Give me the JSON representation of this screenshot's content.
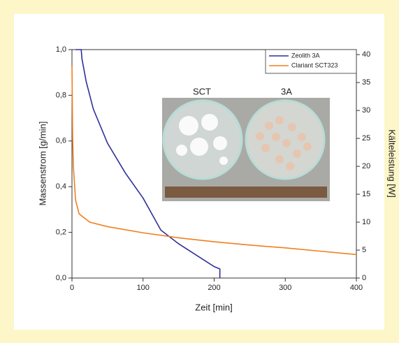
{
  "chart_data": {
    "type": "line",
    "xlabel": "Zeit [min]",
    "ylabel": "Massenstrom [g/min]",
    "y2label": "Kälteleistung [W]",
    "xlim": [
      0,
      400
    ],
    "xticks": [
      0,
      100,
      200,
      300,
      400
    ],
    "ylim": [
      0,
      1.0
    ],
    "yticks": [
      {
        "value": 0,
        "label": "0,0"
      },
      {
        "value": 0.2,
        "label": "0,2"
      },
      {
        "value": 0.4,
        "label": "0,4"
      },
      {
        "value": 0.6,
        "label": "0,6"
      },
      {
        "value": 0.8,
        "label": "0,8"
      },
      {
        "value": 1.0,
        "label": "1,0"
      }
    ],
    "y2lim": [
      0,
      40.9
    ],
    "y2ticks": [
      0,
      5,
      10,
      15,
      20,
      25,
      30,
      35,
      40
    ],
    "legend": "top-right",
    "series": [
      {
        "name": "Zeolith 3A",
        "color": "#2f2f9a",
        "axis": "y",
        "x": [
          5,
          13,
          14,
          20,
          30,
          50,
          75,
          100,
          125,
          150,
          175,
          200,
          208,
          208
        ],
        "values": [
          1.0,
          1.0,
          0.96,
          0.86,
          0.74,
          0.59,
          0.46,
          0.35,
          0.21,
          0.15,
          0.1,
          0.05,
          0.04,
          0
        ]
      },
      {
        "name": "Clariant SCT323",
        "color": "#f07f1e",
        "axis": "y2",
        "x": [
          0,
          1,
          2,
          5,
          10,
          25,
          50,
          100,
          150,
          200,
          250,
          300,
          350,
          400
        ],
        "values": [
          38,
          25,
          20,
          14,
          11.5,
          10,
          9.2,
          8.1,
          7.2,
          6.5,
          5.9,
          5.4,
          4.8,
          4.2
        ]
      }
    ],
    "annotations": [
      "SCT",
      "3A"
    ]
  }
}
